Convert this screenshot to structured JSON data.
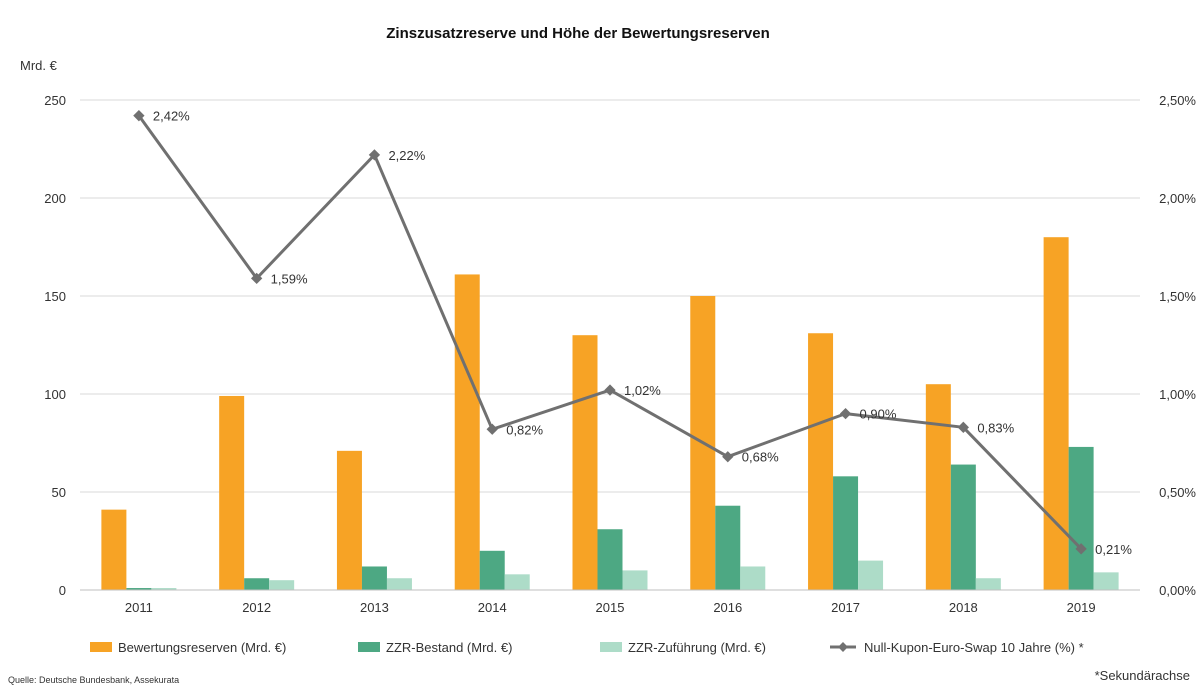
{
  "chart_data": {
    "type": "bar",
    "title": "Zinszusatzreserve und Höhe der Bewertungsreserven",
    "ylabel": "Mrd. €",
    "ylim": [
      0,
      250
    ],
    "yticks": [
      "0",
      "50",
      "100",
      "150",
      "200",
      "250"
    ],
    "y2lim": [
      0,
      2.5
    ],
    "y2ticks": [
      "0,00%",
      "0,50%",
      "1,00%",
      "1,50%",
      "2,00%",
      "2,50%"
    ],
    "categories": [
      "2011",
      "2012",
      "2013",
      "2014",
      "2015",
      "2016",
      "2017",
      "2018",
      "2019"
    ],
    "series": [
      {
        "name": "Bewertungsreserven (Mrd. €)",
        "type": "bar",
        "color": "#F7A325",
        "values": [
          41,
          99,
          71,
          161,
          130,
          150,
          131,
          105,
          180
        ]
      },
      {
        "name": "ZZR-Bestand (Mrd. €)",
        "type": "bar",
        "color": "#4DA883",
        "values": [
          1,
          6,
          12,
          20,
          31,
          43,
          58,
          64,
          73
        ]
      },
      {
        "name": "ZZR-Zuführung (Mrd. €)",
        "type": "bar",
        "color": "#ADDCC8",
        "values": [
          1,
          5,
          6,
          8,
          10,
          12,
          15,
          6,
          9
        ]
      },
      {
        "name": "Null-Kupon-Euro-Swap 10 Jahre (%) *",
        "type": "line",
        "color": "#707070",
        "axis": "secondary",
        "values": [
          2.42,
          1.59,
          2.22,
          0.82,
          1.02,
          0.68,
          0.9,
          0.83,
          0.21
        ],
        "labels": [
          "2,42%",
          "1,59%",
          "2,22%",
          "0,82%",
          "1,02%",
          "0,68%",
          "0,90%",
          "0,83%",
          "0,21%"
        ]
      }
    ],
    "source": "Quelle: Deutsche Bundesbank, Assekurata",
    "note": "*Sekundärachse"
  }
}
